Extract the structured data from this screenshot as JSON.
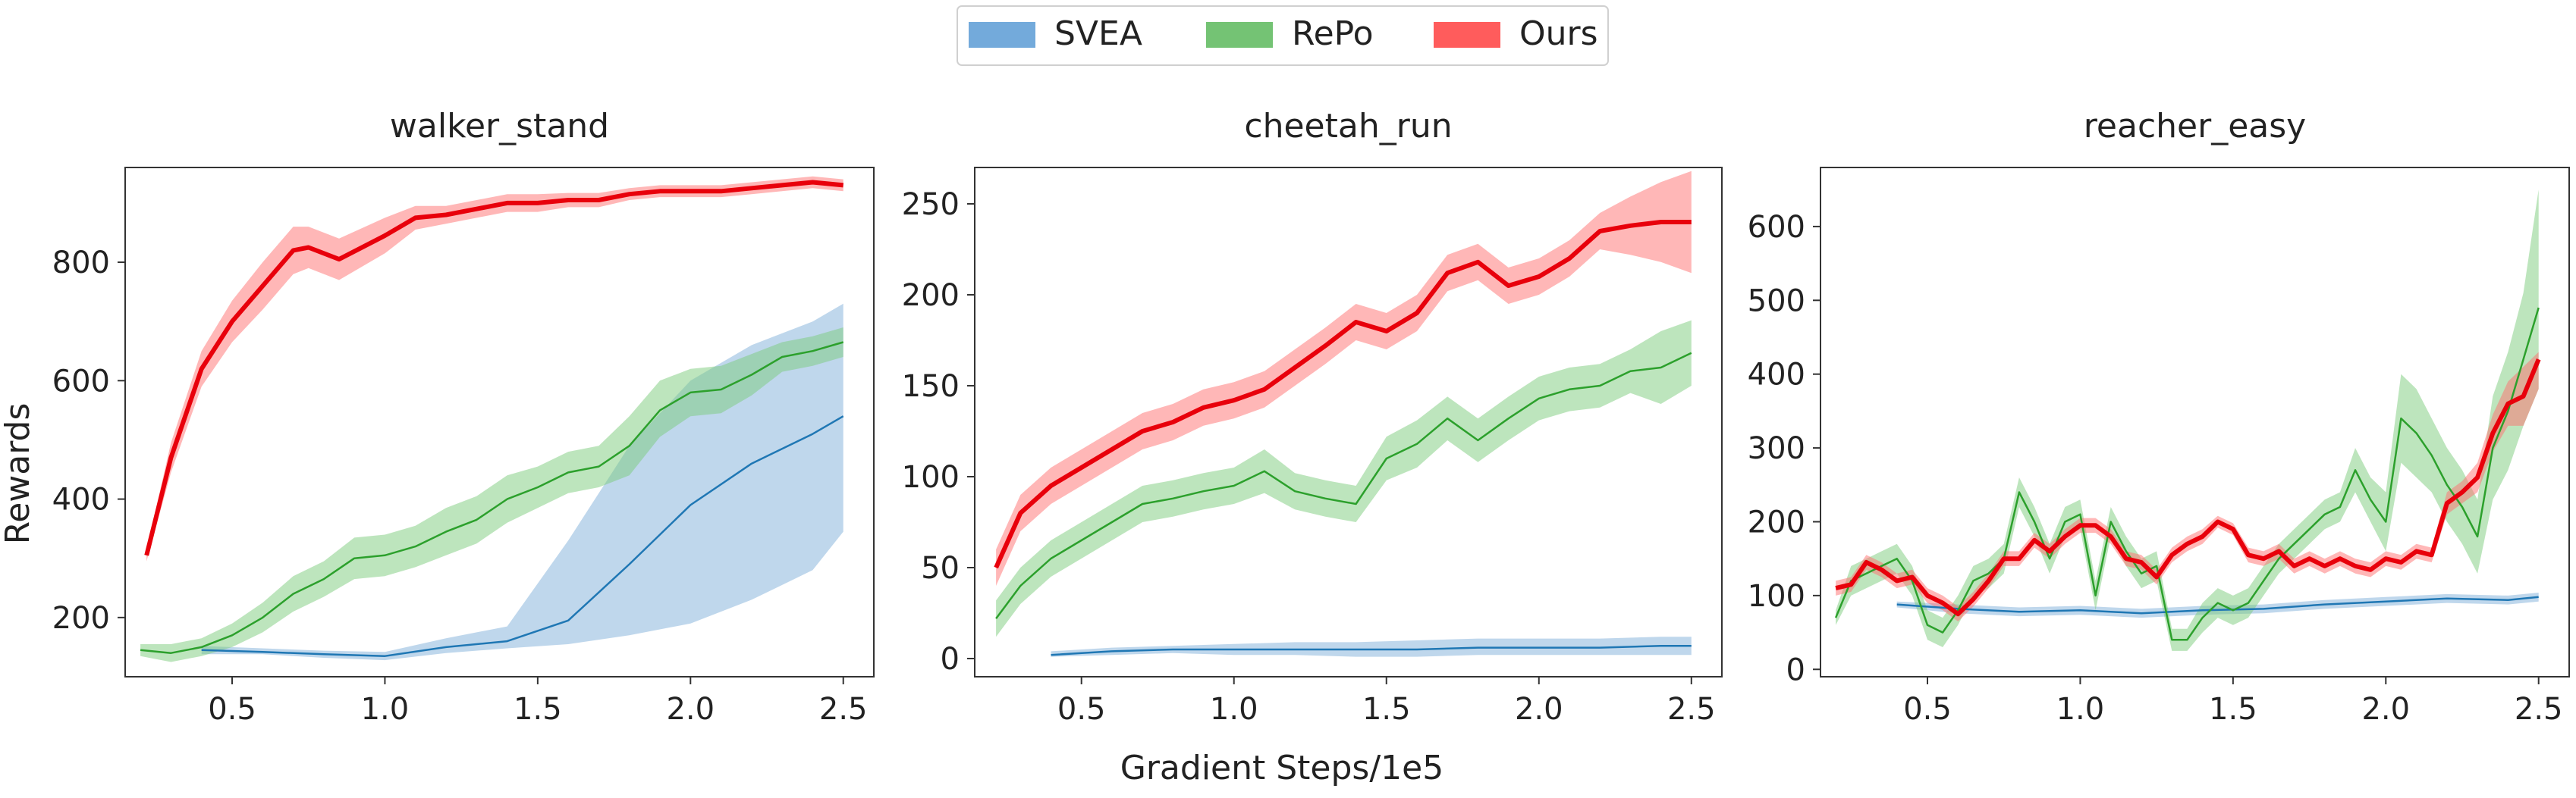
{
  "legend": {
    "items": [
      {
        "label": "SVEA",
        "color": "#5b9bd5"
      },
      {
        "label": "RePo",
        "color": "#5cb85c"
      },
      {
        "label": "Ours",
        "color": "#ff4040"
      }
    ]
  },
  "shared_xlabel": "Gradient Steps/1e5",
  "shared_ylabel": "Rewards",
  "chart_data": [
    {
      "type": "line",
      "title": "walker_stand",
      "xlim": [
        0.15,
        2.6
      ],
      "ylim": [
        100,
        960
      ],
      "xticks": [
        0.5,
        1.0,
        1.5,
        2.0,
        2.5
      ],
      "yticks": [
        200,
        400,
        600,
        800
      ],
      "series": [
        {
          "name": "SVEA",
          "color": "#1f77b4",
          "x": [
            0.4,
            0.6,
            0.8,
            1.0,
            1.2,
            1.4,
            1.6,
            1.8,
            2.0,
            2.2,
            2.4,
            2.5
          ],
          "y": [
            145,
            142,
            138,
            135,
            150,
            160,
            195,
            290,
            390,
            460,
            510,
            540
          ],
          "lower": [
            138,
            138,
            132,
            128,
            140,
            148,
            155,
            170,
            190,
            230,
            280,
            345
          ],
          "upper": [
            152,
            148,
            144,
            142,
            165,
            185,
            330,
            490,
            600,
            660,
            700,
            730
          ]
        },
        {
          "name": "RePo",
          "color": "#2ca02c",
          "x": [
            0.2,
            0.3,
            0.4,
            0.5,
            0.6,
            0.7,
            0.8,
            0.9,
            1.0,
            1.1,
            1.2,
            1.3,
            1.4,
            1.5,
            1.6,
            1.7,
            1.8,
            1.9,
            2.0,
            2.1,
            2.2,
            2.3,
            2.4,
            2.5
          ],
          "y": [
            145,
            140,
            150,
            170,
            200,
            240,
            265,
            300,
            305,
            320,
            345,
            365,
            400,
            420,
            445,
            455,
            490,
            550,
            580,
            585,
            610,
            640,
            650,
            665
          ],
          "lower": [
            135,
            125,
            135,
            150,
            175,
            210,
            235,
            265,
            270,
            285,
            305,
            325,
            360,
            385,
            410,
            420,
            440,
            505,
            540,
            545,
            575,
            615,
            625,
            640
          ],
          "upper": [
            155,
            155,
            165,
            190,
            225,
            270,
            295,
            335,
            340,
            355,
            385,
            405,
            440,
            455,
            480,
            490,
            540,
            600,
            620,
            625,
            645,
            665,
            675,
            690
          ]
        },
        {
          "name": "Ours",
          "color": "#e8000b",
          "x": [
            0.22,
            0.3,
            0.4,
            0.5,
            0.6,
            0.7,
            0.75,
            0.85,
            1.0,
            1.1,
            1.2,
            1.3,
            1.4,
            1.5,
            1.6,
            1.7,
            1.8,
            1.9,
            2.0,
            2.1,
            2.2,
            2.3,
            2.4,
            2.5
          ],
          "y": [
            305,
            470,
            620,
            700,
            760,
            820,
            825,
            805,
            845,
            875,
            880,
            890,
            900,
            900,
            905,
            905,
            915,
            920,
            920,
            920,
            925,
            930,
            935,
            930
          ],
          "lower": [
            295,
            445,
            590,
            665,
            720,
            780,
            790,
            770,
            815,
            855,
            865,
            875,
            885,
            885,
            893,
            893,
            905,
            910,
            910,
            910,
            915,
            920,
            925,
            920
          ],
          "upper": [
            315,
            495,
            650,
            735,
            800,
            860,
            860,
            840,
            875,
            895,
            895,
            905,
            915,
            915,
            917,
            917,
            925,
            930,
            930,
            930,
            935,
            940,
            945,
            940
          ]
        }
      ]
    },
    {
      "type": "line",
      "title": "cheetah_run",
      "xlim": [
        0.15,
        2.6
      ],
      "ylim": [
        -10,
        270
      ],
      "xticks": [
        0.5,
        1.0,
        1.5,
        2.0,
        2.5
      ],
      "yticks": [
        0,
        50,
        100,
        150,
        200,
        250
      ],
      "series": [
        {
          "name": "SVEA",
          "color": "#1f77b4",
          "x": [
            0.4,
            0.6,
            0.8,
            1.0,
            1.2,
            1.4,
            1.6,
            1.8,
            2.0,
            2.2,
            2.4,
            2.5
          ],
          "y": [
            2,
            4,
            5,
            5,
            5,
            5,
            5,
            6,
            6,
            6,
            7,
            7
          ],
          "lower": [
            1,
            2,
            3,
            2,
            2,
            1,
            1,
            2,
            2,
            2,
            2,
            2
          ],
          "upper": [
            4,
            6,
            7,
            8,
            9,
            9,
            10,
            11,
            11,
            11,
            12,
            12
          ]
        },
        {
          "name": "RePo",
          "color": "#2ca02c",
          "x": [
            0.22,
            0.3,
            0.4,
            0.5,
            0.6,
            0.7,
            0.8,
            0.9,
            1.0,
            1.1,
            1.2,
            1.3,
            1.4,
            1.5,
            1.6,
            1.7,
            1.8,
            1.9,
            2.0,
            2.1,
            2.2,
            2.3,
            2.4,
            2.5
          ],
          "y": [
            22,
            40,
            55,
            65,
            75,
            85,
            88,
            92,
            95,
            103,
            92,
            88,
            85,
            110,
            118,
            132,
            120,
            132,
            143,
            148,
            150,
            158,
            160,
            168
          ],
          "lower": [
            12,
            30,
            45,
            55,
            65,
            75,
            78,
            82,
            85,
            91,
            82,
            78,
            75,
            98,
            105,
            120,
            108,
            120,
            131,
            136,
            138,
            146,
            140,
            150
          ],
          "upper": [
            32,
            50,
            65,
            75,
            85,
            95,
            98,
            102,
            105,
            115,
            102,
            98,
            95,
            122,
            131,
            144,
            132,
            144,
            155,
            160,
            162,
            170,
            180,
            186
          ]
        },
        {
          "name": "Ours",
          "color": "#e8000b",
          "x": [
            0.22,
            0.3,
            0.4,
            0.5,
            0.6,
            0.7,
            0.8,
            0.9,
            1.0,
            1.1,
            1.2,
            1.3,
            1.4,
            1.5,
            1.6,
            1.7,
            1.8,
            1.9,
            2.0,
            2.1,
            2.2,
            2.3,
            2.4,
            2.5
          ],
          "y": [
            50,
            80,
            95,
            105,
            115,
            125,
            130,
            138,
            142,
            148,
            160,
            172,
            185,
            180,
            190,
            212,
            218,
            205,
            210,
            220,
            235,
            238,
            240,
            240
          ],
          "lower": [
            40,
            70,
            85,
            95,
            105,
            115,
            120,
            128,
            132,
            138,
            150,
            162,
            175,
            170,
            180,
            202,
            208,
            195,
            200,
            210,
            225,
            222,
            218,
            212
          ],
          "upper": [
            60,
            90,
            105,
            115,
            125,
            135,
            140,
            148,
            152,
            158,
            170,
            182,
            195,
            190,
            200,
            222,
            228,
            215,
            220,
            230,
            245,
            254,
            262,
            268
          ]
        }
      ]
    },
    {
      "type": "line",
      "title": "reacher_easy",
      "xlim": [
        0.15,
        2.6
      ],
      "ylim": [
        -10,
        680
      ],
      "xticks": [
        0.5,
        1.0,
        1.5,
        2.0,
        2.5
      ],
      "yticks": [
        0,
        100,
        200,
        300,
        400,
        500,
        600
      ],
      "series": [
        {
          "name": "SVEA",
          "color": "#1f77b4",
          "x": [
            0.4,
            0.6,
            0.8,
            1.0,
            1.2,
            1.4,
            1.6,
            1.8,
            2.0,
            2.2,
            2.4,
            2.5
          ],
          "y": [
            88,
            82,
            78,
            80,
            76,
            80,
            82,
            88,
            92,
            96,
            94,
            98
          ],
          "lower": [
            84,
            76,
            72,
            74,
            70,
            74,
            76,
            82,
            86,
            90,
            88,
            92
          ],
          "upper": [
            92,
            88,
            84,
            86,
            82,
            86,
            88,
            94,
            98,
            102,
            100,
            104
          ]
        },
        {
          "name": "RePo",
          "color": "#2ca02c",
          "x": [
            0.2,
            0.25,
            0.3,
            0.35,
            0.4,
            0.45,
            0.5,
            0.55,
            0.6,
            0.65,
            0.7,
            0.75,
            0.8,
            0.85,
            0.9,
            0.95,
            1.0,
            1.05,
            1.1,
            1.15,
            1.2,
            1.25,
            1.3,
            1.35,
            1.4,
            1.45,
            1.5,
            1.55,
            1.6,
            1.65,
            1.7,
            1.75,
            1.8,
            1.85,
            1.9,
            1.95,
            2.0,
            2.05,
            2.1,
            2.15,
            2.2,
            2.25,
            2.3,
            2.35,
            2.4,
            2.45,
            2.5
          ],
          "y": [
            70,
            120,
            130,
            140,
            150,
            120,
            60,
            50,
            80,
            120,
            130,
            150,
            240,
            200,
            150,
            200,
            210,
            100,
            200,
            160,
            130,
            140,
            40,
            40,
            70,
            90,
            80,
            90,
            120,
            150,
            170,
            190,
            210,
            220,
            270,
            230,
            200,
            340,
            320,
            290,
            250,
            220,
            180,
            300,
            350,
            420,
            490
          ],
          "lower": [
            60,
            100,
            110,
            120,
            130,
            100,
            40,
            30,
            60,
            100,
            110,
            130,
            220,
            180,
            130,
            180,
            190,
            80,
            180,
            140,
            110,
            120,
            25,
            25,
            50,
            70,
            60,
            70,
            100,
            130,
            150,
            170,
            190,
            200,
            240,
            200,
            160,
            280,
            260,
            240,
            200,
            170,
            130,
            230,
            270,
            330,
            380
          ],
          "upper": [
            80,
            140,
            150,
            160,
            170,
            140,
            80,
            70,
            100,
            140,
            150,
            170,
            260,
            220,
            170,
            220,
            230,
            120,
            220,
            180,
            150,
            160,
            55,
            55,
            90,
            110,
            100,
            110,
            140,
            170,
            190,
            210,
            230,
            240,
            300,
            260,
            240,
            400,
            380,
            340,
            300,
            270,
            230,
            370,
            430,
            510,
            650
          ]
        },
        {
          "name": "Ours",
          "color": "#e8000b",
          "x": [
            0.2,
            0.25,
            0.3,
            0.35,
            0.4,
            0.45,
            0.5,
            0.55,
            0.6,
            0.65,
            0.7,
            0.75,
            0.8,
            0.85,
            0.9,
            0.95,
            1.0,
            1.05,
            1.1,
            1.15,
            1.2,
            1.25,
            1.3,
            1.35,
            1.4,
            1.45,
            1.5,
            1.55,
            1.6,
            1.65,
            1.7,
            1.75,
            1.8,
            1.85,
            1.9,
            1.95,
            2.0,
            2.05,
            2.1,
            2.15,
            2.2,
            2.25,
            2.3,
            2.35,
            2.4,
            2.45,
            2.5
          ],
          "y": [
            110,
            115,
            145,
            135,
            120,
            125,
            100,
            90,
            75,
            95,
            120,
            150,
            150,
            175,
            160,
            180,
            195,
            195,
            180,
            150,
            145,
            125,
            155,
            170,
            180,
            200,
            190,
            155,
            150,
            160,
            140,
            150,
            140,
            150,
            140,
            135,
            150,
            145,
            160,
            155,
            225,
            240,
            260,
            320,
            360,
            370,
            420
          ],
          "lower": [
            100,
            105,
            135,
            125,
            110,
            115,
            90,
            80,
            65,
            85,
            110,
            140,
            140,
            165,
            150,
            170,
            185,
            185,
            170,
            140,
            135,
            115,
            145,
            160,
            170,
            192,
            182,
            145,
            140,
            150,
            130,
            140,
            130,
            140,
            130,
            125,
            140,
            135,
            150,
            145,
            210,
            225,
            240,
            295,
            330,
            330,
            380
          ],
          "upper": [
            120,
            125,
            155,
            145,
            130,
            135,
            110,
            100,
            85,
            105,
            130,
            160,
            160,
            185,
            170,
            190,
            205,
            205,
            190,
            160,
            155,
            135,
            165,
            180,
            190,
            208,
            198,
            165,
            160,
            170,
            150,
            160,
            150,
            160,
            150,
            145,
            160,
            155,
            170,
            165,
            240,
            255,
            280,
            345,
            390,
            410,
            430
          ]
        }
      ]
    }
  ]
}
